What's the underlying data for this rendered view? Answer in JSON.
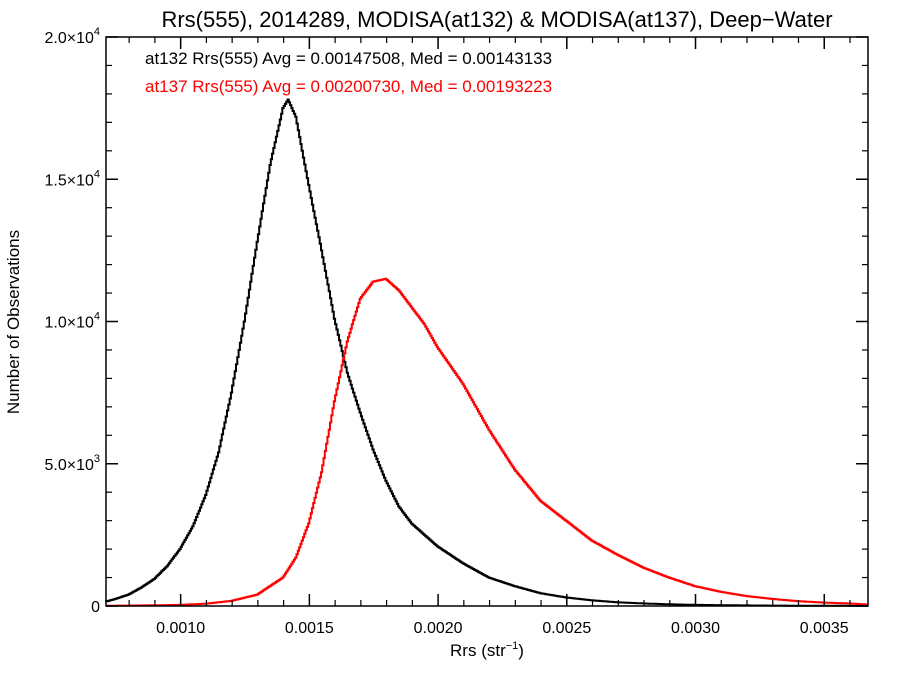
{
  "chart_data": {
    "type": "line",
    "title": "Rrs(555), 2014289, MODISA(at132) & MODISA(at137), Deep−Water",
    "xlabel": "Rrs (str",
    "xlabel_sup": "−1",
    "xlabel_suffix": ")",
    "ylabel": "Number of Observations",
    "xlim": [
      0.00071,
      0.00367
    ],
    "ylim": [
      0,
      20000
    ],
    "x_ticks": [
      {
        "value": 0.001,
        "label": "0.0010"
      },
      {
        "value": 0.0015,
        "label": "0.0015"
      },
      {
        "value": 0.002,
        "label": "0.0020"
      },
      {
        "value": 0.0025,
        "label": "0.0025"
      },
      {
        "value": 0.003,
        "label": "0.0030"
      },
      {
        "value": 0.0035,
        "label": "0.0035"
      }
    ],
    "y_ticks": [
      {
        "value": 0,
        "label": "0",
        "sup": ""
      },
      {
        "value": 5000,
        "label": "5.0×10",
        "sup": "3"
      },
      {
        "value": 10000,
        "label": "1.0×10",
        "sup": "4"
      },
      {
        "value": 15000,
        "label": "1.5×10",
        "sup": "4"
      },
      {
        "value": 20000,
        "label": "2.0×10",
        "sup": "4"
      }
    ],
    "annotations": [
      {
        "text": "at132 Rrs(555) Avg = 0.00147508, Med = 0.00143133",
        "color": "#000000"
      },
      {
        "text": "at137 Rrs(555) Avg = 0.00200730, Med = 0.00193223",
        "color": "#ff0000"
      }
    ],
    "series": [
      {
        "color": "#000000",
        "x": [
          0.00071,
          0.00075,
          0.0008,
          0.00085,
          0.0009,
          0.00095,
          0.001,
          0.00105,
          0.0011,
          0.00115,
          0.0012,
          0.00125,
          0.0013,
          0.00135,
          0.0014,
          0.00142,
          0.00145,
          0.0015,
          0.00155,
          0.0016,
          0.00165,
          0.0017,
          0.00175,
          0.0018,
          0.00185,
          0.0019,
          0.002,
          0.0021,
          0.0022,
          0.0023,
          0.0024,
          0.0025,
          0.0026,
          0.0027,
          0.0028,
          0.0029,
          0.003,
          0.0031,
          0.0032,
          0.0033,
          0.0034,
          0.0035,
          0.0036,
          0.00367
        ],
        "y": [
          150,
          250,
          400,
          650,
          950,
          1400,
          2000,
          2800,
          3900,
          5400,
          7500,
          10000,
          12800,
          15500,
          17500,
          17800,
          17200,
          14800,
          12500,
          10100,
          8200,
          6800,
          5500,
          4400,
          3500,
          2900,
          2100,
          1500,
          1000,
          700,
          450,
          300,
          200,
          130,
          90,
          60,
          40,
          30,
          20,
          15,
          10,
          8,
          5,
          5
        ]
      },
      {
        "color": "#ff0000",
        "x": [
          0.00071,
          0.0008,
          0.0009,
          0.001,
          0.0011,
          0.0012,
          0.0013,
          0.0014,
          0.00145,
          0.0015,
          0.00155,
          0.0016,
          0.00165,
          0.0017,
          0.00175,
          0.0018,
          0.00185,
          0.0019,
          0.00195,
          0.002,
          0.0021,
          0.0022,
          0.0023,
          0.0024,
          0.0025,
          0.0026,
          0.0027,
          0.0028,
          0.0029,
          0.003,
          0.0031,
          0.0032,
          0.0033,
          0.0034,
          0.0035,
          0.0036,
          0.00367
        ],
        "y": [
          10,
          15,
          25,
          40,
          80,
          180,
          400,
          1000,
          1700,
          2900,
          4700,
          7200,
          9300,
          10800,
          11400,
          11500,
          11100,
          10500,
          9900,
          9100,
          7800,
          6200,
          4800,
          3700,
          3000,
          2300,
          1800,
          1350,
          1000,
          700,
          500,
          350,
          250,
          170,
          120,
          90,
          50
        ]
      }
    ]
  }
}
